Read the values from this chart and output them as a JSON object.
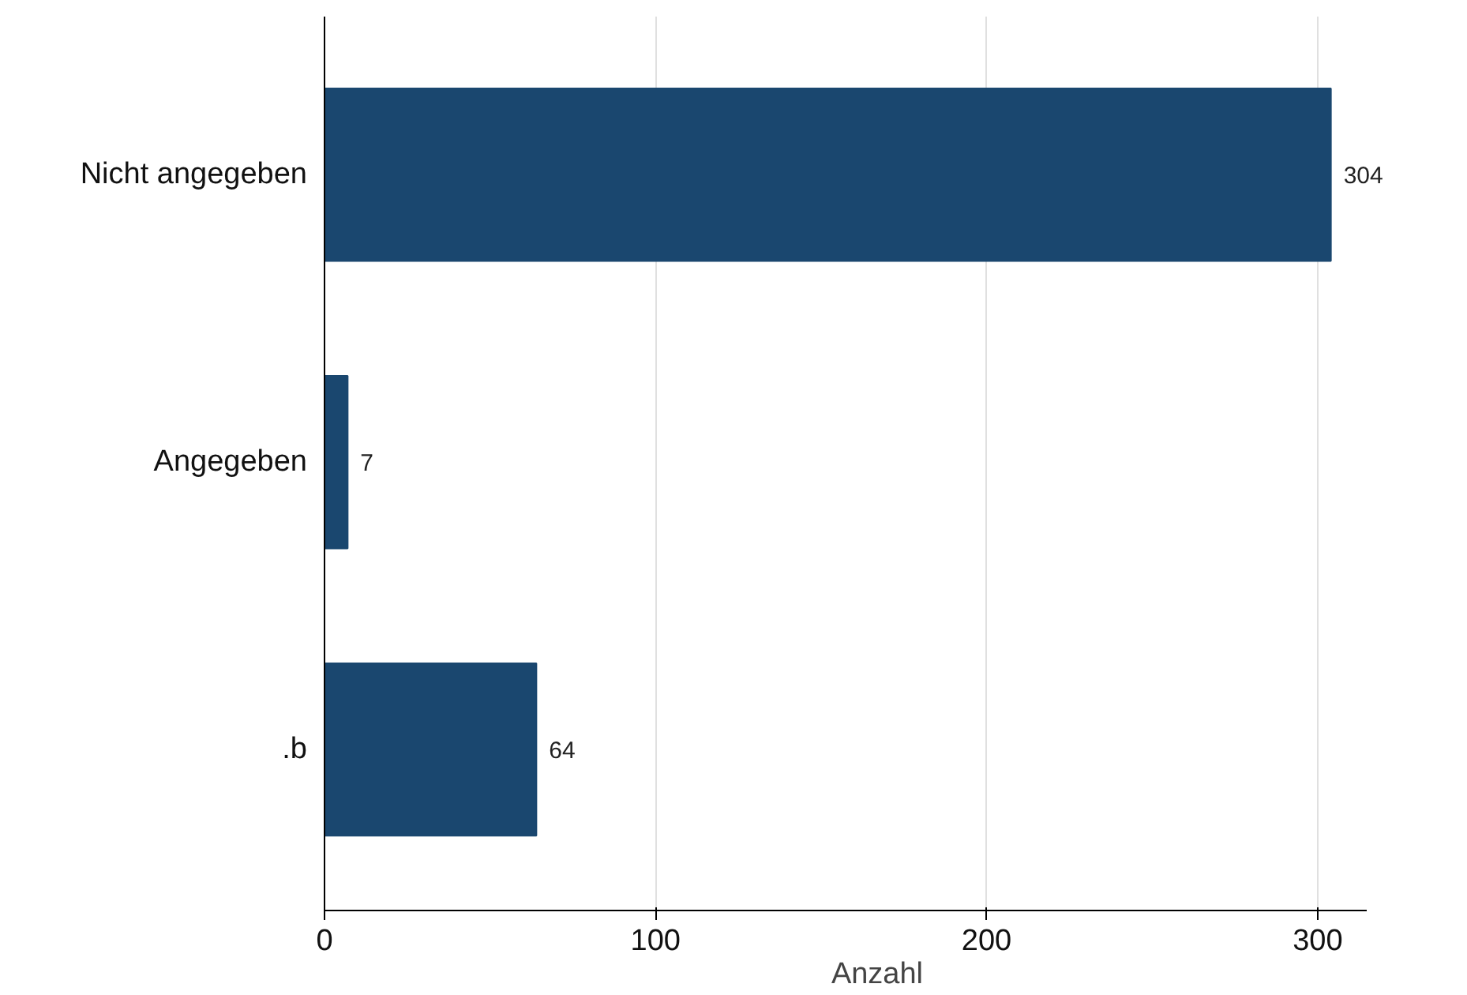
{
  "chart_data": {
    "type": "bar",
    "orientation": "horizontal",
    "categories": [
      "Nicht angegeben",
      "Angegeben",
      ".b"
    ],
    "values": [
      304,
      7,
      64
    ],
    "color": "#1a476f",
    "xlabel": "Anzahl",
    "xlim": [
      0,
      315
    ],
    "xticks": [
      0,
      100,
      200,
      300
    ],
    "grid": "x",
    "data_labels": true
  }
}
